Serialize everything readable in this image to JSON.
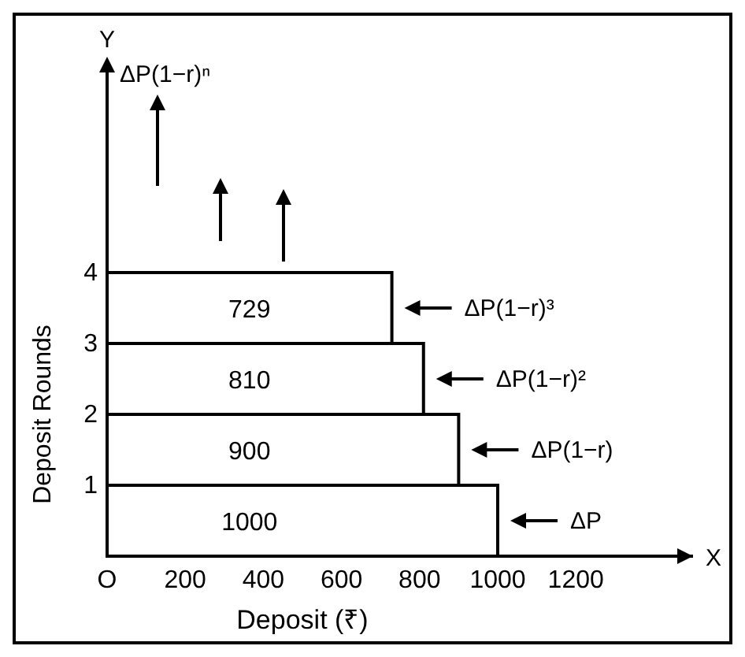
{
  "chart_data": {
    "type": "bar",
    "orientation": "horizontal",
    "xlabel": "Deposit (₹)",
    "ylabel": "Deposit Rounds",
    "categories": [
      "4",
      "3",
      "2",
      "1"
    ],
    "values": [
      729,
      810,
      900,
      1000
    ],
    "color": "#ffffff",
    "data_labels": true,
    "xlim": [
      0,
      1500
    ],
    "xticks": [
      {
        "value": 0,
        "label": "O"
      },
      200,
      400,
      600,
      800,
      1000,
      1200
    ],
    "annotations": [
      "Y",
      "X",
      "ΔP(1−r)ⁿ",
      "ΔP(1−r)³",
      "ΔP(1−r)²",
      "ΔP(1−r)",
      "ΔP"
    ]
  }
}
